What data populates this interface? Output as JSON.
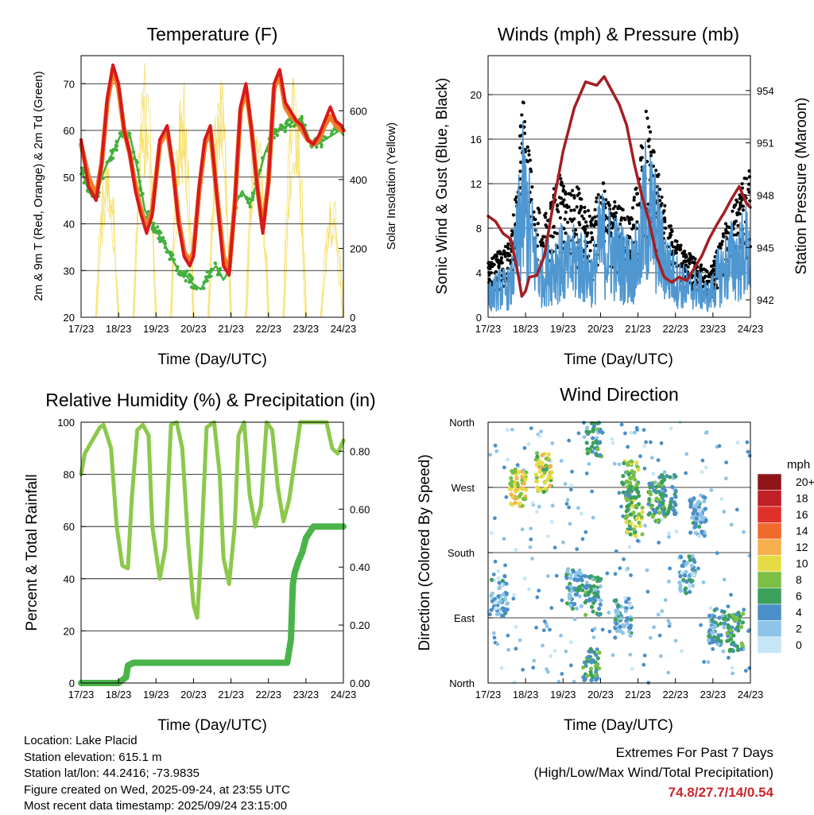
{
  "colors": {
    "temp_red": "#d7191c",
    "temp_orange": "#f07d24",
    "dewpoint_green": "#42b03c",
    "solar_yellow": "#f7e06a",
    "gust_black": "#000000",
    "wind_blue": "#4f97d1",
    "pressure_maroon": "#a41e23",
    "rh_green": "#8cc84b",
    "rain_green": "#4ab34a",
    "extremes_red": "#c8272c",
    "speed_scale": [
      "#c6e6f7",
      "#8ec4e8",
      "#4a8fc7",
      "#3aa05a",
      "#7bbf45",
      "#e5dc45",
      "#f7b04d",
      "#f06a2d",
      "#e0302a",
      "#c11f26",
      "#8f1519"
    ]
  },
  "info": {
    "location": "Location: Lake Placid",
    "elevation": "Station elevation: 615.1 m",
    "latlon": "Station lat/lon: 44.2416; -73.9835",
    "created": "Figure created on Wed, 2025-09-24, at 23:55 UTC",
    "timestamp": "Most recent data timestamp: 2025/09/24 23:15:00"
  },
  "extremes": {
    "title": "Extremes For Past 7 Days",
    "subtitle": "(High/Low/Max Wind/Total Precipitation)",
    "values": "74.8/27.7/14/0.54"
  },
  "chart_data": [
    {
      "type": "line",
      "id": "temperature",
      "title": "Temperature (F)",
      "xlabel": "Time (Day/UTC)",
      "ylabel": "2m & 9m T (Red, Orange) & 2m Td (Green)",
      "y2label": "Solar Insolation (Yellow)",
      "x_ticks": [
        "17/23",
        "18/23",
        "19/23",
        "20/23",
        "21/23",
        "22/23",
        "23/23",
        "24/23"
      ],
      "xlim": [
        0,
        7
      ],
      "ylim": [
        20,
        76
      ],
      "y_ticks": [
        20,
        30,
        40,
        50,
        60,
        70
      ],
      "y2lim": [
        0,
        760
      ],
      "y2_ticks": [
        0,
        200,
        400,
        600
      ],
      "series": [
        {
          "name": "2m T",
          "color": "temp_red",
          "x": [
            0,
            0.2,
            0.4,
            0.55,
            0.7,
            0.85,
            1.0,
            1.15,
            1.3,
            1.45,
            1.6,
            1.75,
            1.9,
            2.1,
            2.3,
            2.45,
            2.6,
            2.75,
            2.9,
            3.0,
            3.15,
            3.3,
            3.45,
            3.6,
            3.8,
            3.95,
            4.1,
            4.25,
            4.4,
            4.55,
            4.7,
            4.85,
            5.0,
            5.15,
            5.3,
            5.45,
            5.6,
            5.75,
            5.9,
            6.05,
            6.2,
            6.35,
            6.5,
            6.65,
            6.8,
            6.95,
            7.0
          ],
          "y": [
            58,
            48,
            45,
            53,
            67,
            74,
            70,
            60,
            55,
            47,
            42,
            38,
            42,
            58,
            61,
            52,
            40,
            33,
            31,
            33,
            48,
            58,
            61,
            48,
            31,
            29,
            44,
            65,
            70,
            60,
            48,
            38,
            49,
            70,
            73,
            66,
            64,
            62,
            61,
            58,
            57,
            59,
            62,
            65,
            62,
            61,
            60
          ]
        },
        {
          "name": "9m T",
          "color": "temp_orange",
          "x": [
            0,
            0.2,
            0.4,
            0.55,
            0.7,
            0.85,
            1.0,
            1.15,
            1.3,
            1.45,
            1.6,
            1.75,
            1.9,
            2.1,
            2.3,
            2.45,
            2.6,
            2.75,
            2.9,
            3.0,
            3.15,
            3.3,
            3.45,
            3.6,
            3.8,
            3.95,
            4.1,
            4.25,
            4.4,
            4.55,
            4.7,
            4.85,
            5.0,
            5.15,
            5.3,
            5.45,
            5.6,
            5.75,
            5.9,
            6.05,
            6.2,
            6.35,
            6.5,
            6.65,
            6.8,
            6.95,
            7.0
          ],
          "y": [
            57,
            50,
            46,
            53,
            66,
            73,
            69,
            60,
            55,
            48,
            43,
            39,
            43,
            57,
            60,
            52,
            41,
            34,
            32,
            34,
            47,
            57,
            60,
            48,
            33,
            30,
            44,
            64,
            69,
            60,
            48,
            39,
            49,
            69,
            72,
            65,
            63,
            62,
            60,
            58,
            57,
            58,
            61,
            63,
            61,
            60,
            60
          ]
        },
        {
          "name": "2m Td",
          "color": "dewpoint_green",
          "x": [
            0,
            0.2,
            0.4,
            0.55,
            0.7,
            0.9,
            1.1,
            1.3,
            1.5,
            1.7,
            1.9,
            2.2,
            2.4,
            2.6,
            2.8,
            3.0,
            3.2,
            3.4,
            3.6,
            3.8,
            3.95,
            4.1,
            4.3,
            4.5,
            4.7,
            4.9,
            5.1,
            5.3,
            5.5,
            5.7,
            5.9,
            6.1,
            6.3,
            6.5,
            6.7,
            6.9,
            7.0
          ],
          "y": [
            52,
            47,
            45,
            50,
            53,
            56,
            60,
            59,
            52,
            43,
            40,
            36,
            33,
            30,
            29,
            27,
            26,
            29,
            31,
            28,
            30,
            44,
            47,
            44,
            49,
            55,
            59,
            60,
            61,
            62,
            62,
            58,
            57,
            58,
            59,
            60,
            59
          ]
        }
      ],
      "solar": {
        "name": "Solar Insolation",
        "color": "solar_yellow",
        "days": [
          0.7,
          1.7,
          2.7,
          3.7,
          4.7,
          5.7,
          6.7
        ],
        "peaks": [
          500,
          740,
          700,
          730,
          620,
          710,
          360
        ]
      }
    },
    {
      "type": "scatter",
      "id": "winds",
      "title": "Winds (mph) & Pressure (mb)",
      "xlabel": "Time (Day/UTC)",
      "ylabel": "Sonic Wind & Gust (Blue, Black)",
      "y2label": "Station Pressure (Maroon)",
      "x_ticks": [
        "17/23",
        "18/23",
        "19/23",
        "20/23",
        "21/23",
        "22/23",
        "23/23",
        "24/23"
      ],
      "xlim": [
        0,
        7
      ],
      "ylim": [
        0,
        23.5
      ],
      "y_ticks": [
        0,
        4,
        8,
        12,
        16,
        20
      ],
      "y2lim": [
        941,
        956
      ],
      "y2_ticks": [
        942,
        945,
        948,
        951,
        954
      ],
      "wind_envelope": {
        "x": [
          0,
          0.3,
          0.6,
          0.8,
          0.9,
          1.0,
          1.2,
          1.4,
          1.6,
          1.9,
          2.1,
          2.4,
          2.6,
          2.8,
          3.0,
          3.2,
          3.5,
          3.8,
          4.0,
          4.2,
          4.4,
          4.6,
          4.8,
          5.0,
          5.3,
          5.6,
          5.9,
          6.1,
          6.3,
          6.5,
          6.7,
          6.9,
          7.0
        ],
        "y": [
          2,
          3,
          3,
          8,
          12,
          11,
          7,
          4,
          5,
          6,
          5,
          6,
          5,
          4,
          8,
          7,
          6,
          5,
          6,
          11,
          10,
          7,
          5,
          4,
          3,
          3,
          2,
          4,
          5,
          6,
          6,
          7,
          6
        ]
      },
      "gust_envelope": {
        "x": [
          0,
          0.3,
          0.6,
          0.8,
          0.9,
          1.0,
          1.2,
          1.4,
          1.6,
          1.9,
          2.1,
          2.4,
          2.6,
          2.8,
          3.0,
          3.2,
          3.5,
          3.8,
          4.0,
          4.2,
          4.4,
          4.6,
          4.8,
          5.0,
          5.3,
          5.6,
          5.9,
          6.1,
          6.3,
          6.5,
          6.7,
          6.9,
          7.0
        ],
        "y": [
          5,
          6,
          7,
          13,
          21,
          18,
          12,
          9,
          10,
          13,
          11,
          12,
          10,
          9,
          13,
          11,
          10,
          9,
          13,
          19,
          16,
          12,
          9,
          7,
          6,
          5,
          4,
          6,
          8,
          10,
          11,
          14,
          13
        ]
      },
      "pressure": {
        "name": "Station Pressure",
        "color": "pressure_maroon",
        "x": [
          0,
          0.2,
          0.4,
          0.6,
          0.8,
          0.9,
          1.0,
          1.1,
          1.3,
          1.5,
          1.7,
          2.0,
          2.3,
          2.6,
          2.9,
          3.1,
          3.3,
          3.5,
          3.7,
          3.9,
          4.1,
          4.3,
          4.5,
          4.7,
          4.9,
          5.1,
          5.3,
          5.5,
          5.7,
          5.9,
          6.1,
          6.3,
          6.5,
          6.7,
          6.9,
          7.0
        ],
        "y": [
          946.8,
          946.5,
          945.8,
          945.5,
          943.5,
          942.2,
          942.5,
          943.3,
          943.4,
          944.5,
          947.0,
          950.5,
          953.0,
          954.5,
          954.3,
          954.8,
          954.0,
          953.2,
          952.0,
          949.8,
          948.0,
          946.5,
          944.5,
          943.3,
          943.0,
          943.3,
          943.1,
          943.8,
          944.5,
          945.5,
          946.3,
          947.0,
          947.8,
          948.5,
          947.5,
          947.3
        ]
      }
    },
    {
      "type": "line",
      "id": "humidity",
      "title": "Relative Humidity (%) & Precipitation (in)",
      "xlabel": "Time (Day/UTC)",
      "ylabel": "Percent & Total Rainfall",
      "x_ticks": [
        "17/23",
        "18/23",
        "19/23",
        "20/23",
        "21/23",
        "22/23",
        "23/23",
        "24/23"
      ],
      "xlim": [
        0,
        7
      ],
      "ylim": [
        0,
        100
      ],
      "y_ticks": [
        0,
        20,
        40,
        60,
        80,
        100
      ],
      "y2lim": [
        0,
        0.9
      ],
      "y2_ticks": [
        "0.00",
        "0.20",
        "0.40",
        "0.60",
        "0.80"
      ],
      "series": [
        {
          "name": "Relative Humidity",
          "color": "rh_green",
          "x": [
            0,
            0.1,
            0.3,
            0.5,
            0.6,
            0.8,
            0.95,
            1.1,
            1.25,
            1.35,
            1.5,
            1.65,
            1.8,
            1.9,
            2.1,
            2.25,
            2.4,
            2.55,
            2.7,
            2.85,
            3.0,
            3.1,
            3.2,
            3.35,
            3.55,
            3.7,
            3.8,
            3.95,
            4.1,
            4.2,
            4.35,
            4.5,
            4.65,
            4.8,
            4.95,
            5.1,
            5.25,
            5.4,
            5.55,
            5.7,
            5.85,
            6.0,
            6.2,
            6.4,
            6.55,
            6.7,
            6.85,
            7.0
          ],
          "y": [
            80,
            88,
            93,
            98,
            99,
            90,
            60,
            45,
            44,
            70,
            97,
            99,
            95,
            60,
            40,
            52,
            99,
            100,
            90,
            55,
            30,
            25,
            50,
            98,
            100,
            80,
            48,
            38,
            60,
            95,
            100,
            72,
            60,
            68,
            100,
            97,
            75,
            62,
            70,
            85,
            100,
            100,
            100,
            100,
            100,
            90,
            88,
            93
          ]
        },
        {
          "name": "Total Rainfall",
          "color": "rain_green",
          "x": [
            0,
            1.0,
            1.2,
            1.25,
            1.4,
            5.5,
            5.6,
            5.65,
            5.7,
            5.8,
            5.9,
            6.0,
            6.2,
            7.0
          ],
          "y": [
            0,
            0,
            0.02,
            0.06,
            0.07,
            0.07,
            0.15,
            0.34,
            0.38,
            0.42,
            0.45,
            0.5,
            0.54,
            0.54
          ]
        }
      ]
    },
    {
      "type": "scatter",
      "id": "direction",
      "title": "Wind Direction",
      "xlabel": "Time (Day/UTC)",
      "ylabel": "Direction (Colored By Speed)",
      "x_ticks": [
        "17/23",
        "18/23",
        "19/23",
        "20/23",
        "21/23",
        "22/23",
        "23/23",
        "24/23"
      ],
      "xlim": [
        0,
        7
      ],
      "ylim": [
        0,
        360
      ],
      "y_tick_labels": [
        "North",
        "East",
        "South",
        "West",
        "North"
      ],
      "legend_title": "mph",
      "legend_labels": [
        "20+",
        "18",
        "16",
        "14",
        "12",
        "10",
        "8",
        "6",
        "4",
        "2",
        "0"
      ],
      "clusters": [
        {
          "x": 0.3,
          "dir": 120,
          "speed": 3
        },
        {
          "x": 0.8,
          "dir": 270,
          "speed": 10
        },
        {
          "x": 1.5,
          "dir": 290,
          "speed": 9
        },
        {
          "x": 2.3,
          "dir": 130,
          "speed": 4
        },
        {
          "x": 2.8,
          "dir": 120,
          "speed": 5
        },
        {
          "x": 2.75,
          "dir": 20,
          "speed": 6
        },
        {
          "x": 2.85,
          "dir": 340,
          "speed": 5
        },
        {
          "x": 3.6,
          "dir": 90,
          "speed": 3
        },
        {
          "x": 3.9,
          "dir": 230,
          "speed": 8
        },
        {
          "x": 3.8,
          "dir": 280,
          "speed": 7
        },
        {
          "x": 4.5,
          "dir": 250,
          "speed": 6
        },
        {
          "x": 4.8,
          "dir": 260,
          "speed": 5
        },
        {
          "x": 5.3,
          "dir": 150,
          "speed": 3
        },
        {
          "x": 5.6,
          "dir": 230,
          "speed": 3
        },
        {
          "x": 6.1,
          "dir": 80,
          "speed": 4
        },
        {
          "x": 6.6,
          "dir": 70,
          "speed": 6
        }
      ]
    }
  ]
}
